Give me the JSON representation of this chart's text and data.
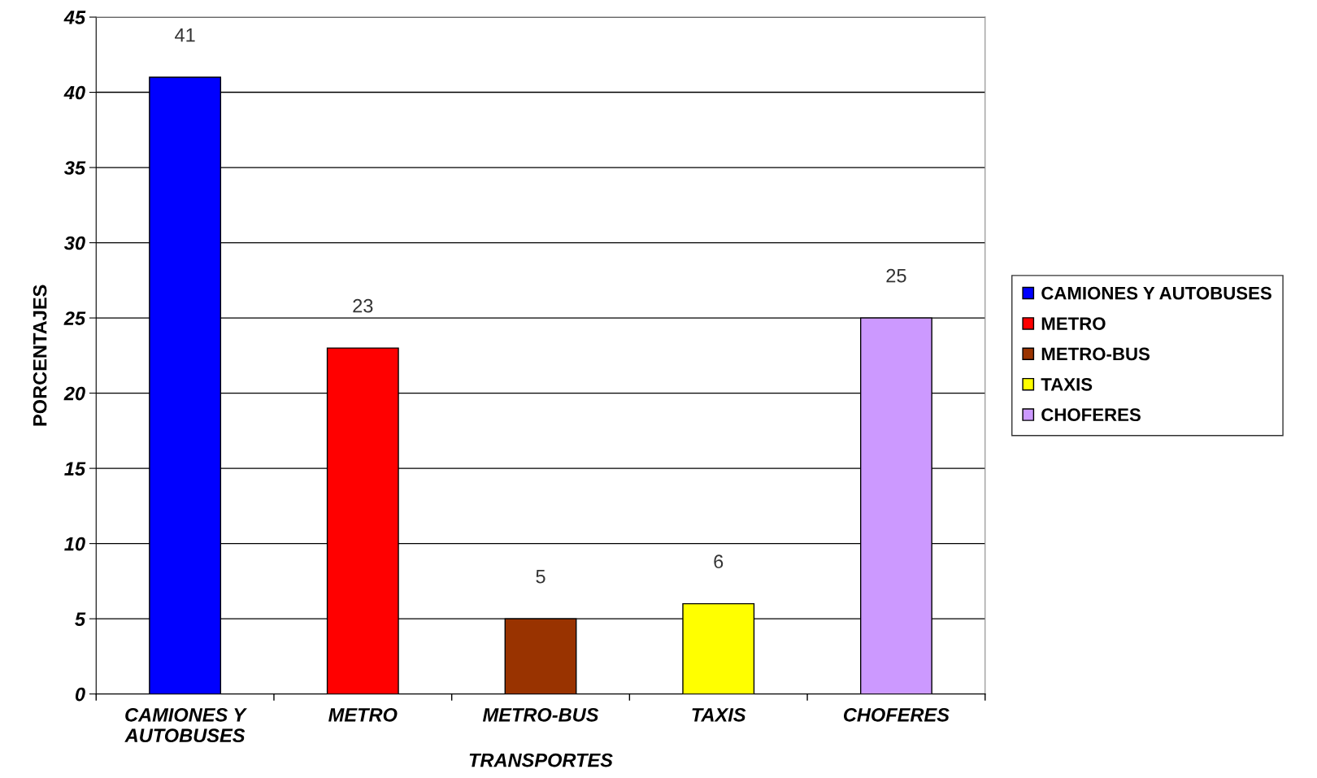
{
  "chart_data": {
    "type": "bar",
    "xlabel": "TRANSPORTES",
    "ylabel": "PORCENTAJES",
    "categories": [
      "CAMIONES Y\nAUTOBUSES",
      "METRO",
      "METRO-BUS",
      "TAXIS",
      "CHOFERES"
    ],
    "series": [
      {
        "name": "CAMIONES Y AUTOBUSES",
        "color": "#0000ff",
        "values": [
          41,
          null,
          null,
          null,
          null
        ]
      },
      {
        "name": "METRO",
        "color": "#ff0000",
        "values": [
          null,
          23,
          null,
          null,
          null
        ]
      },
      {
        "name": "METRO-BUS",
        "color": "#993300",
        "values": [
          null,
          null,
          5,
          null,
          null
        ]
      },
      {
        "name": "TAXIS",
        "color": "#ffff00",
        "values": [
          null,
          null,
          null,
          6,
          null
        ]
      },
      {
        "name": "CHOFERES",
        "color": "#cc99ff",
        "values": [
          null,
          null,
          null,
          null,
          25
        ]
      }
    ],
    "ylim": [
      0,
      45
    ],
    "yticks": [
      0,
      5,
      10,
      15,
      20,
      25,
      30,
      35,
      40,
      45
    ],
    "grid": "y",
    "legend": "right",
    "data_labels": true
  }
}
